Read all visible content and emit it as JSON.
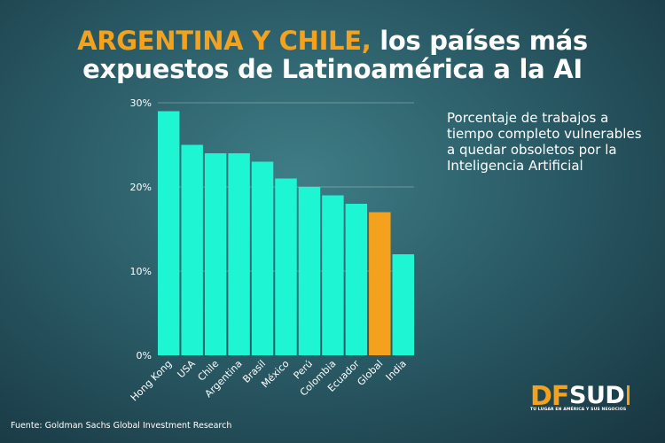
{
  "title": {
    "highlight": "ARGENTINA Y CHILE,",
    "line1_rest": "los países más",
    "line2": "expuestos de Latinoamérica a la AI"
  },
  "subtitle": "Porcentaje de trabajos a tiempo completo vulnerables a quedar obsoletos por la Inteligencia Artificial",
  "source": "Fuente: Goldman Sachs Global Investment Research",
  "logo": {
    "df": "DF",
    "sud": "SUD",
    "tagline": "TU LUGAR EN AMÉRICA Y SUS NEGOCIOS"
  },
  "colors": {
    "bar": "#1ef5d2",
    "highlight_bar": "#f4a21d",
    "title_highlight": "#f4a21d",
    "text": "#ffffff"
  },
  "chart_data": {
    "type": "bar",
    "categories": [
      "Hong Kong",
      "USA",
      "Chile",
      "Argentina",
      "Brasil",
      "México",
      "Perú",
      "Colombia",
      "Ecuador",
      "Global",
      "India"
    ],
    "values": [
      29,
      25,
      24,
      24,
      23,
      21,
      20,
      19,
      18,
      17,
      12
    ],
    "highlight_category": "Global",
    "ylim": [
      0,
      30
    ],
    "yticks": [
      "0%",
      "10%",
      "20%",
      "30%"
    ],
    "ytick_values": [
      0,
      10,
      20,
      30
    ],
    "grid": true
  }
}
